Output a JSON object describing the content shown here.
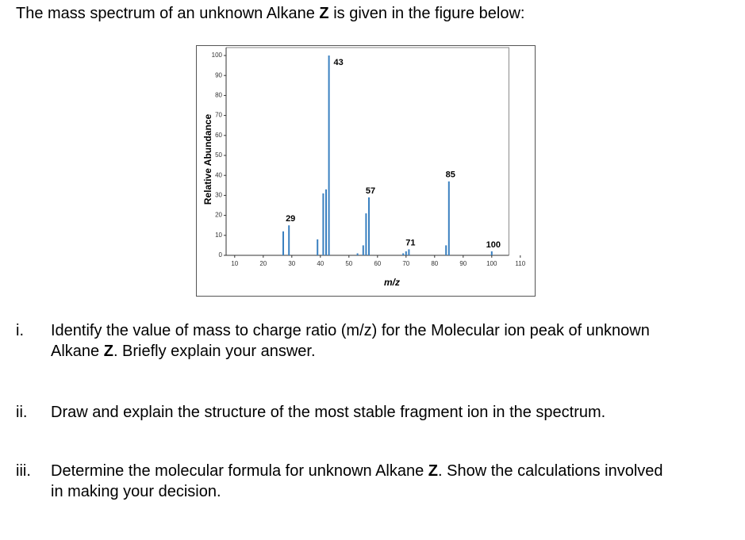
{
  "title": [
    {
      "text": "The mass spectrum of an unknown Alkane "
    },
    {
      "text": "Z",
      "bold": true
    },
    {
      "text": " is given in the figure below:"
    }
  ],
  "chart_data": {
    "type": "stick",
    "x_label": "m/z",
    "y_label": "Relative Abundance",
    "x": [
      27,
      29,
      39,
      41,
      42,
      43,
      53,
      55,
      56,
      57,
      69,
      70,
      71,
      84,
      85,
      100
    ],
    "values": [
      12,
      15,
      8,
      31,
      33,
      100,
      1,
      5,
      21,
      29,
      1,
      2,
      3,
      5,
      37,
      2
    ],
    "color": "#3a80c0",
    "peak_labels": [
      29,
      43,
      57,
      71,
      85,
      100
    ],
    "xlim": [
      7,
      112
    ],
    "ylim": [
      0,
      100
    ],
    "xticks": [
      10,
      20,
      30,
      40,
      50,
      60,
      70,
      80,
      90,
      100,
      110
    ],
    "yticks": [
      0,
      10,
      20,
      30,
      40,
      50,
      60,
      70,
      80,
      90,
      100
    ]
  },
  "questions": [
    {
      "number": "i.",
      "lines": [
        [
          {
            "text": "Identify the value of mass to charge ratio (m/z) for the Molecular ion peak of unknown"
          }
        ],
        [
          {
            "text": "Alkane "
          },
          {
            "text": "Z",
            "bold": true
          },
          {
            "text": ". Briefly explain your answer."
          }
        ]
      ]
    },
    {
      "number": "ii.",
      "lines": [
        [
          {
            "text": "Draw and explain the structure of the most stable fragment ion in the spectrum."
          }
        ]
      ]
    },
    {
      "number": "iii.",
      "lines": [
        [
          {
            "text": "Determine the molecular formula for unknown Alkane "
          },
          {
            "text": "Z",
            "bold": true
          },
          {
            "text": ". Show the calculations involved"
          }
        ],
        [
          {
            "text": "in making your decision."
          }
        ]
      ]
    }
  ]
}
